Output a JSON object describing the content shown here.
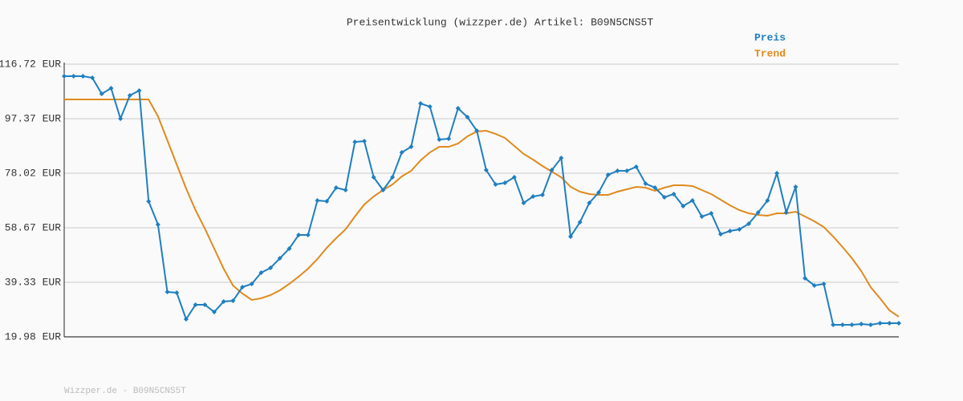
{
  "chart_data": {
    "type": "line",
    "title": "Preisentwicklung (wizzper.de) Artikel: B09N5CNS5T",
    "footer": "Wizzper.de - B09N5CNS5T",
    "ylim": [
      19.98,
      116.72
    ],
    "yticks": [
      {
        "value": 19.98,
        "label": "19.98 EUR"
      },
      {
        "value": 39.33,
        "label": "39.33 EUR"
      },
      {
        "value": 58.67,
        "label": "58.67 EUR"
      },
      {
        "value": 78.02,
        "label": "78.02 EUR"
      },
      {
        "value": 97.37,
        "label": "97.37 EUR"
      },
      {
        "value": 116.72,
        "label": "116.72 EUR"
      }
    ],
    "grid": true,
    "legend": "top-right",
    "series": [
      {
        "name": "Preis",
        "color": "#1f7fc0",
        "markers": true,
        "values": [
          112.45,
          112.45,
          112.45,
          111.88,
          106.19,
          108.18,
          97.37,
          105.62,
          107.33,
          68.07,
          59.81,
          35.91,
          35.63,
          26.24,
          31.36,
          31.36,
          28.8,
          32.5,
          32.78,
          37.62,
          38.76,
          42.74,
          44.45,
          47.86,
          51.28,
          56.12,
          56.12,
          68.35,
          68.07,
          72.9,
          72.05,
          89.12,
          89.41,
          76.6,
          72.05,
          76.6,
          85.42,
          87.41,
          102.78,
          101.64,
          89.97,
          90.26,
          101.07,
          97.94,
          93.1,
          79.16,
          74.04,
          74.61,
          76.6,
          67.5,
          69.77,
          70.34,
          79.16,
          83.43,
          55.55,
          60.67,
          67.5,
          71.2,
          77.46,
          78.88,
          78.88,
          80.3,
          74.33,
          72.9,
          69.49,
          70.63,
          66.36,
          68.35,
          62.66,
          63.8,
          56.4,
          57.54,
          58.11,
          60.1,
          64.08,
          68.35,
          78.03,
          64.08,
          73.19,
          40.76,
          38.2,
          38.76,
          24.26,
          24.26,
          24.26,
          24.54,
          24.26,
          24.83,
          24.83,
          24.83
        ]
      },
      {
        "name": "Trend",
        "color": "#e08a1e",
        "markers": false,
        "values": [
          104.2,
          104.2,
          104.2,
          104.2,
          104.2,
          104.2,
          104.2,
          104.2,
          104.2,
          104.2,
          98.23,
          89.69,
          81.16,
          72.62,
          64.94,
          58.4,
          51.28,
          44.17,
          38.2,
          35.35,
          33.08,
          33.65,
          34.78,
          36.49,
          38.76,
          41.33,
          44.17,
          47.59,
          51.57,
          54.98,
          58.11,
          62.66,
          66.93,
          69.77,
          72.05,
          74.04,
          76.89,
          78.88,
          82.58,
          85.42,
          87.41,
          87.41,
          88.55,
          91.11,
          92.82,
          93.1,
          91.97,
          90.55,
          87.7,
          84.86,
          82.86,
          80.59,
          78.6,
          76.6,
          73.19,
          71.48,
          70.63,
          70.34,
          70.34,
          71.48,
          72.34,
          73.19,
          72.9,
          71.77,
          72.9,
          73.76,
          73.76,
          73.48,
          72.05,
          70.63,
          68.64,
          66.65,
          64.94,
          63.8,
          63.23,
          62.95,
          63.8,
          63.8,
          64.37,
          62.66,
          60.96,
          58.96,
          55.55,
          51.85,
          47.86,
          43.31,
          37.62,
          33.65,
          29.37,
          27.1
        ]
      }
    ]
  }
}
